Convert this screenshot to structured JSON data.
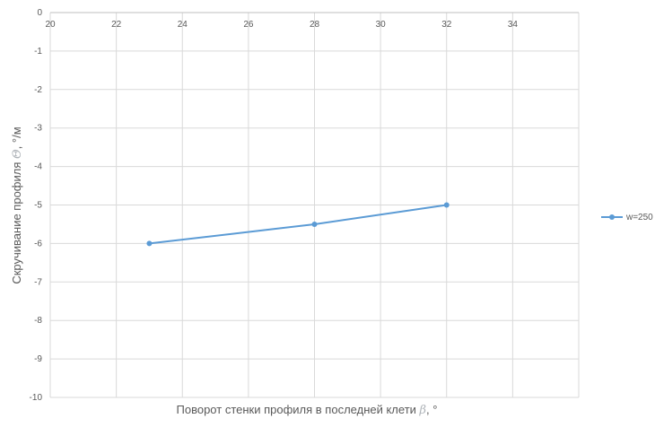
{
  "chart_data": {
    "type": "line",
    "title": "",
    "xlabel": "Поворот стенки профиля в последней клети ",
    "xlabel_symbol": "β",
    "xlabel_unit": ", °",
    "ylabel": "Скручивание профиля ",
    "ylabel_symbol": "Θ",
    "ylabel_unit": ", °/м",
    "xlim": [
      20,
      36
    ],
    "ylim": [
      -10,
      0
    ],
    "x_ticks": [
      "20",
      "22",
      "24",
      "26",
      "28",
      "30",
      "32",
      "34"
    ],
    "y_ticks": [
      "0",
      "-1",
      "-2",
      "-3",
      "-4",
      "-5",
      "-6",
      "-7",
      "-8",
      "-9",
      "-10"
    ],
    "grid": true,
    "legend_position": "right",
    "series": [
      {
        "name": "w=250",
        "color": "#5b9bd5",
        "x": [
          23,
          28,
          32
        ],
        "y": [
          -6,
          -5.5,
          -5
        ]
      }
    ]
  }
}
